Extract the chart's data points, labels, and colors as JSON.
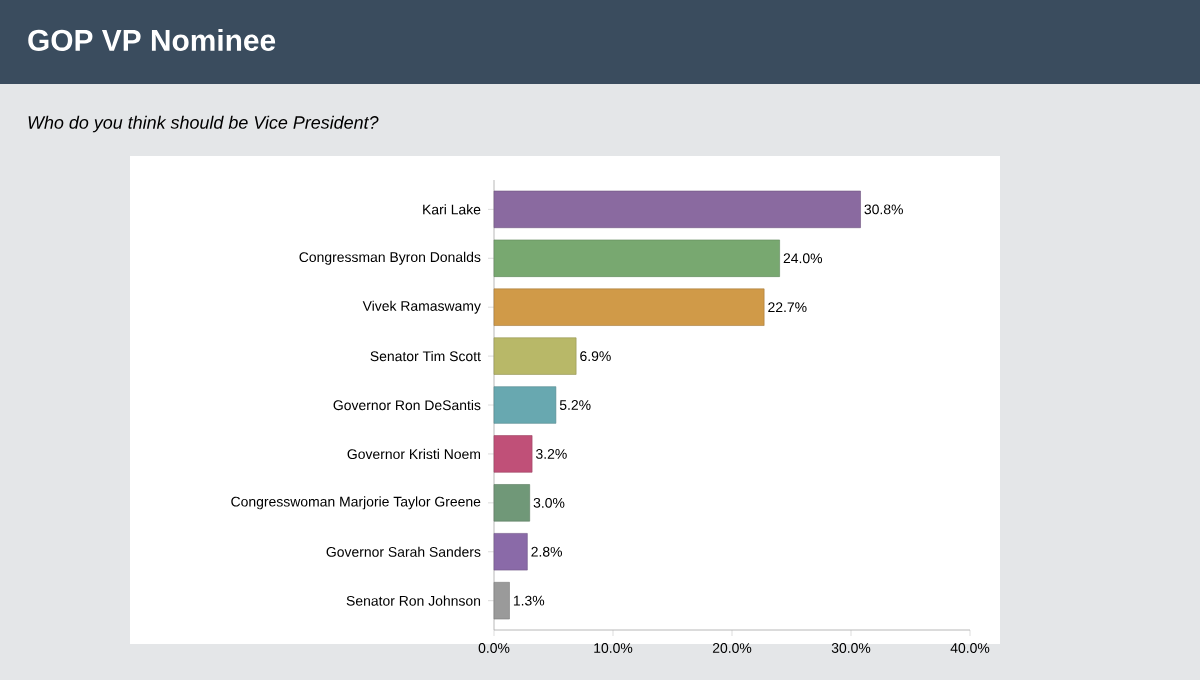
{
  "chart_data": {
    "type": "bar",
    "orientation": "horizontal",
    "title": "GOP VP Nominee",
    "subtitle": "Who do you think should be Vice President?",
    "categories": [
      "Kari Lake",
      "Congressman Byron Donalds",
      "Vivek Ramaswamy",
      "Senator Tim Scott",
      "Governor Ron DeSantis",
      "Governor Kristi Noem",
      "Congresswoman Marjorie Taylor Greene",
      "Governor Sarah Sanders",
      "Senator Ron Johnson"
    ],
    "values": [
      30.8,
      24.0,
      22.7,
      6.9,
      5.2,
      3.2,
      3.0,
      2.8,
      1.3
    ],
    "value_labels": [
      "30.8%",
      "24.0%",
      "22.7%",
      "6.9%",
      "5.2%",
      "3.2%",
      "3.0%",
      "2.8%",
      "1.3%"
    ],
    "colors": [
      "#8a6aa0",
      "#78a870",
      "#d09a48",
      "#b8b868",
      "#68a8b0",
      "#c05078",
      "#709878",
      "#8a6aa8",
      "#9a9a9a"
    ],
    "xlim": [
      0,
      40
    ],
    "xticks": [
      {
        "value": 0,
        "label": "0.0%"
      },
      {
        "value": 10,
        "label": "10.0%"
      },
      {
        "value": 20,
        "label": "20.0%"
      },
      {
        "value": 30,
        "label": "30.0%"
      },
      {
        "value": 40,
        "label": "40.0%"
      }
    ]
  }
}
